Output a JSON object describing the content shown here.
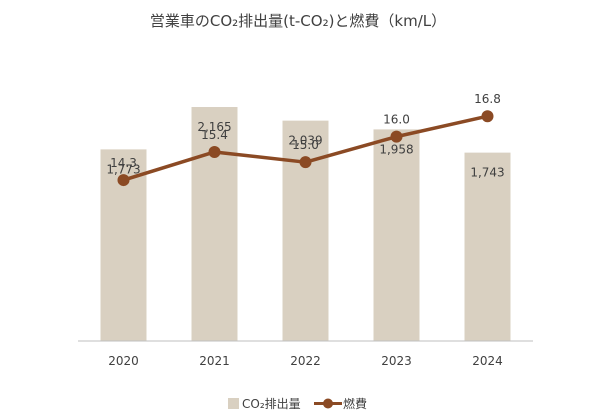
{
  "chart_data": {
    "type": "bar+line",
    "title": "営業車のCO₂排出量(t-CO₂)と燃費（km/L）",
    "categories": [
      "2020",
      "2021",
      "2022",
      "2023",
      "2024"
    ],
    "series": [
      {
        "name": "CO₂排出量",
        "type": "bar",
        "values": [
          1773,
          2165,
          2039,
          1958,
          1743
        ],
        "labels": [
          "1,773",
          "2,165",
          "2,039",
          "1,958",
          "1,743"
        ],
        "color": "#d9d0c1",
        "ylim": [
          0,
          2600
        ]
      },
      {
        "name": "燃費",
        "type": "line",
        "values": [
          14.3,
          15.4,
          15.0,
          16.0,
          16.8
        ],
        "labels": [
          "14.3",
          "15.4",
          "15.0",
          "16.0",
          "16.8"
        ],
        "color": "#8b4a24",
        "ylim": [
          8,
          19
        ]
      }
    ],
    "grid": false,
    "legend_position": "bottom"
  }
}
